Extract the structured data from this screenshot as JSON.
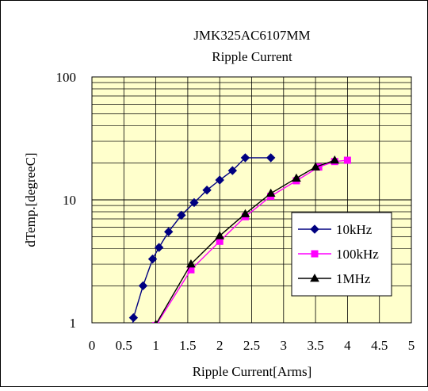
{
  "chart_data": {
    "type": "line",
    "title": "JMK325AC6107MM",
    "subtitle": "Ripple Current",
    "xlabel": "Ripple Current[Arms]",
    "ylabel": "dTemp.[degreeC]",
    "xlim": [
      0,
      5
    ],
    "ylim": [
      1,
      100
    ],
    "yscale": "log",
    "xticks": [
      "0",
      "0.5",
      "1",
      "1.5",
      "2",
      "2.5",
      "3",
      "3.5",
      "4",
      "4.5",
      "5"
    ],
    "yticks": [
      "1",
      "10",
      "100"
    ],
    "grid": true,
    "plot_background": "#ffffcc",
    "legend_position": "right",
    "series": [
      {
        "name": "10kHz",
        "color": "#000080",
        "marker": "diamond",
        "x": [
          0.6,
          0.65,
          0.8,
          0.95,
          1.05,
          1.2,
          1.4,
          1.6,
          1.8,
          2.0,
          2.2,
          2.4,
          2.8
        ],
        "y": [
          0.7,
          1.1,
          2.0,
          3.3,
          4.1,
          5.5,
          7.5,
          9.5,
          12.0,
          14.5,
          17.3,
          22.0,
          22.0
        ]
      },
      {
        "name": "100kHz",
        "color": "#ff00ff",
        "marker": "square",
        "x": [
          1.0,
          1.55,
          2.0,
          2.4,
          2.8,
          3.2,
          3.55,
          3.8,
          4.0
        ],
        "y": [
          0.95,
          2.7,
          4.6,
          7.3,
          10.7,
          14.3,
          18.5,
          20.5,
          21.0
        ]
      },
      {
        "name": "1MHz",
        "color": "#000000",
        "marker": "triangle",
        "x": [
          1.0,
          1.55,
          2.0,
          2.4,
          2.8,
          3.2,
          3.5,
          3.8
        ],
        "y": [
          0.97,
          3.0,
          5.1,
          7.7,
          11.3,
          15.0,
          18.5,
          21.0
        ]
      }
    ]
  }
}
